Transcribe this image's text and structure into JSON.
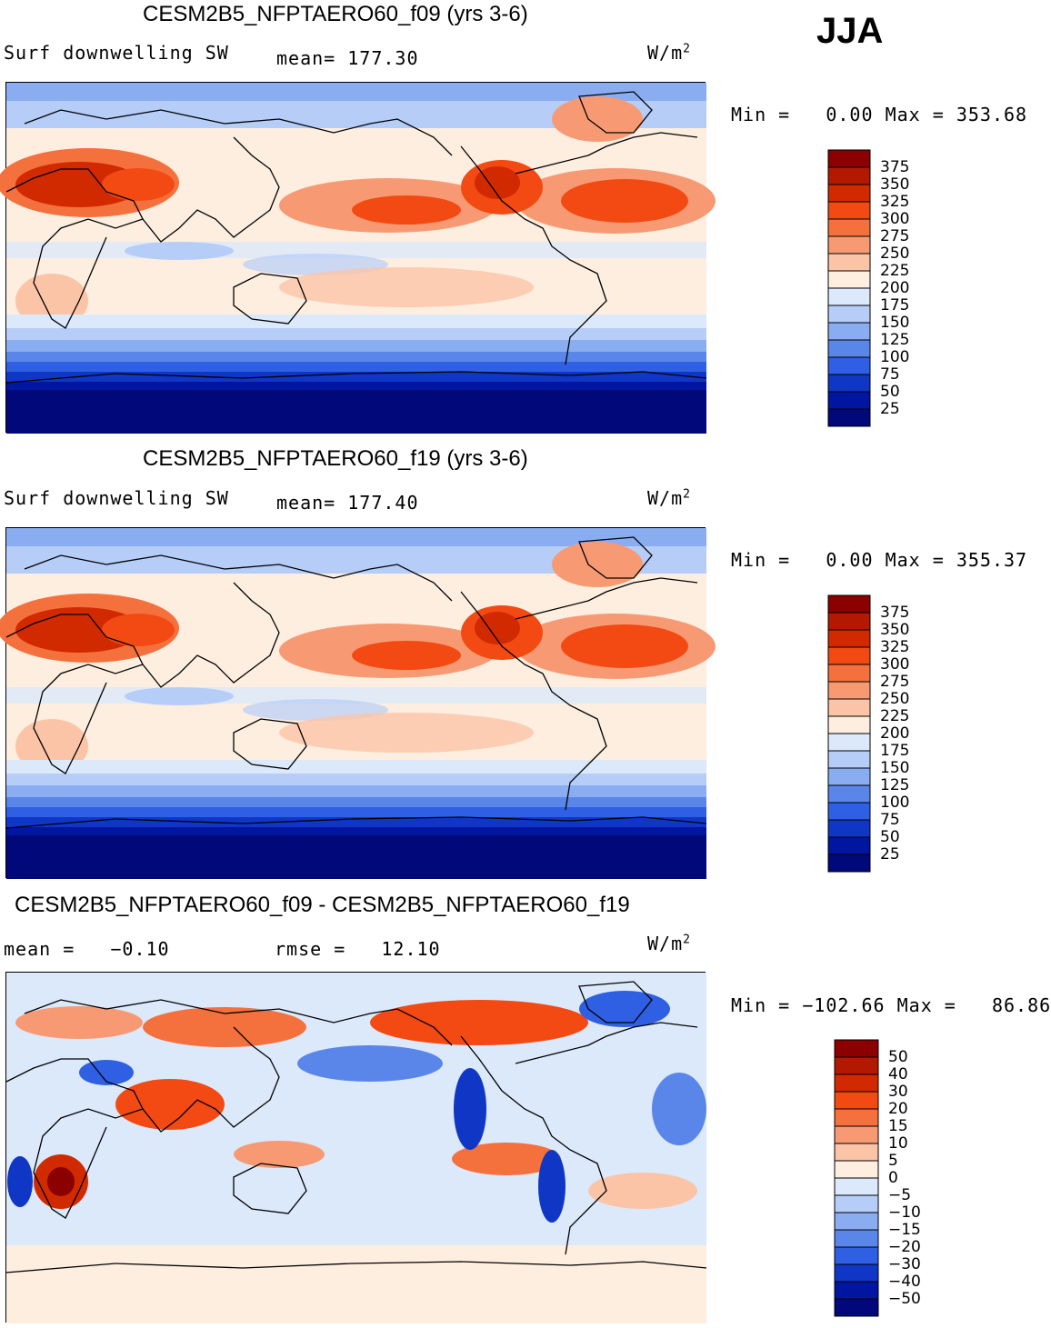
{
  "season": "JJA",
  "panels": [
    {
      "title": "CESM2B5_NFPTAERO60_f09 (yrs 3-6)",
      "left_label": "Surf downwelling SW",
      "stat_label": "mean=",
      "stat_value": "177.30",
      "units_base": "W/m",
      "units_exp": "2",
      "minmax": {
        "min_label": "Min  =",
        "min_value": "0.00",
        "max_label": "Max  =",
        "max_value": "353.68"
      },
      "type": "mean"
    },
    {
      "title": "CESM2B5_NFPTAERO60_f19 (yrs 3-6)",
      "left_label": "Surf downwelling SW",
      "stat_label": "mean=",
      "stat_value": "177.40",
      "units_base": "W/m",
      "units_exp": "2",
      "minmax": {
        "min_label": "Min  =",
        "min_value": "0.00",
        "max_label": "Max  =",
        "max_value": "355.37"
      },
      "type": "mean"
    },
    {
      "title": "CESM2B5_NFPTAERO60_f09 - CESM2B5_NFPTAERO60_f19",
      "left_label": "mean  =",
      "left_value": "−0.10",
      "stat_label": "rmse  =",
      "stat_value": "12.10",
      "units_base": "W/m",
      "units_exp": "2",
      "minmax": {
        "min_label": "Min  =",
        "min_value": "−102.66",
        "max_label": "Max  =",
        "max_value": "86.86"
      },
      "type": "diff"
    }
  ],
  "chart_data": [
    {
      "type": "heatmap",
      "title": "CESM2B5_NFPTAERO60_f09 (yrs 3-6)",
      "variable": "Surf downwelling SW",
      "units": "W/m2",
      "mean": 177.3,
      "min": 0.0,
      "max": 353.68,
      "colorbar_levels": [
        "375",
        "350",
        "325",
        "300",
        "275",
        "250",
        "225",
        "200",
        "175",
        "150",
        "125",
        "100",
        "75",
        "50",
        "25"
      ]
    },
    {
      "type": "heatmap",
      "title": "CESM2B5_NFPTAERO60_f19 (yrs 3-6)",
      "variable": "Surf downwelling SW",
      "units": "W/m2",
      "mean": 177.4,
      "min": 0.0,
      "max": 355.37,
      "colorbar_levels": [
        "375",
        "350",
        "325",
        "300",
        "275",
        "250",
        "225",
        "200",
        "175",
        "150",
        "125",
        "100",
        "75",
        "50",
        "25"
      ]
    },
    {
      "type": "heatmap",
      "title": "CESM2B5_NFPTAERO60_f09 - CESM2B5_NFPTAERO60_f19",
      "units": "W/m2",
      "mean": -0.1,
      "rmse": 12.1,
      "min": -102.66,
      "max": 86.86,
      "colorbar_levels": [
        "50",
        "40",
        "30",
        "20",
        "15",
        "10",
        "5",
        "0",
        "−5",
        "−10",
        "−15",
        "−20",
        "−30",
        "−40",
        "−50"
      ]
    }
  ],
  "colors": {
    "mean_scale": [
      "#8b0000",
      "#b31800",
      "#d22a00",
      "#f24a12",
      "#f4713e",
      "#f79a74",
      "#fbc4a7",
      "#fdeee0",
      "#dbe9fb",
      "#b6cdf8",
      "#8aadf2",
      "#5a86ea",
      "#2f5fe2",
      "#1036c6",
      "#0016a0",
      "#00087a"
    ],
    "diff_scale": [
      "#8b0000",
      "#b31800",
      "#d22a00",
      "#f24a12",
      "#f4713e",
      "#f79a74",
      "#fbc4a7",
      "#fdeee0",
      "#dbe9fb",
      "#b6cdf8",
      "#8aadf2",
      "#5a86ea",
      "#2f5fe2",
      "#1036c6",
      "#0016a0",
      "#00087a"
    ]
  }
}
